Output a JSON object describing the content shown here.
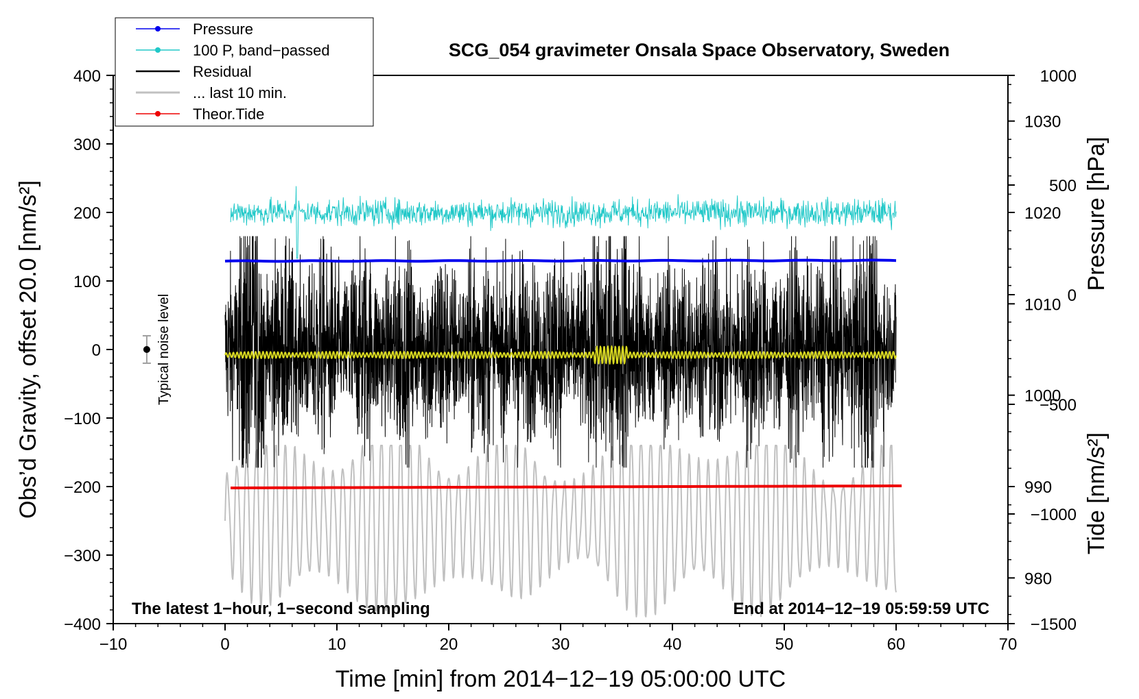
{
  "chart_data": {
    "type": "line",
    "title": "SCG_054 gravimeter Onsala Space Observatory, Sweden",
    "xlabel": "Time [min] from 2014−12−19 05:00:00 UTC",
    "ylabel_left": "Obs’d Gravity, offset 20.0 [nm/s²]",
    "ylabel_right_top": "Pressure [hPa]",
    "ylabel_right_bottom": "Tide [nm/s²]",
    "xlim": [
      -10,
      70
    ],
    "ylim_left": [
      -400,
      400
    ],
    "x_ticks": [
      -10,
      0,
      10,
      20,
      30,
      40,
      50,
      60,
      70
    ],
    "x_tick_labels": [
      "−10",
      "0",
      "10",
      "20",
      "30",
      "40",
      "50",
      "60",
      "70"
    ],
    "y_ticks_left": [
      400,
      300,
      200,
      100,
      0,
      -100,
      -200,
      -300,
      -400
    ],
    "y_tick_labels_left": [
      "400",
      "300",
      "200",
      "100",
      "0",
      "−100",
      "−200",
      "−300",
      "−400"
    ],
    "pressure_axis": {
      "range": [
        975,
        1035
      ],
      "ticks": [
        1030,
        1020,
        1010,
        1000,
        990,
        980
      ],
      "labels": [
        "1030",
        "1020",
        "1010",
        "1000",
        "990",
        "980"
      ]
    },
    "tide_axis": {
      "range": [
        -1500,
        1000
      ],
      "ticks": [
        1000,
        500,
        0,
        -500,
        -1000,
        -1500
      ],
      "labels": [
        "1000",
        "500",
        "0",
        "−500",
        "−1000",
        "−1500"
      ]
    },
    "legend": [
      {
        "label": "Pressure",
        "color": "#0000ee",
        "marker": true
      },
      {
        "label": "100 P, band−passed",
        "color": "#20c8c8",
        "marker": true
      },
      {
        "label": "Residual",
        "color": "#000000",
        "marker": false
      },
      {
        "label": "... last 10 min.",
        "color": "#c0c0c0",
        "marker": false
      },
      {
        "label": "Theor.Tide",
        "color": "#ee0000",
        "marker": true
      }
    ],
    "annotations": {
      "bottom_left": "The latest 1−hour, 1−second sampling",
      "bottom_right": "End at 2014−12−19 05:59:59 UTC",
      "noise_label": "Typical noise level"
    },
    "noise_bar": {
      "x": -7,
      "center": 0,
      "half_range": 20
    },
    "series": [
      {
        "name": "Pressure",
        "axis": "left",
        "color": "#0000ee",
        "x_range": [
          0,
          60
        ],
        "values_start_end": [
          129,
          130
        ]
      },
      {
        "name": "100 P, band−passed",
        "axis": "left",
        "color": "#20c8c8",
        "x_range": [
          0.5,
          60
        ],
        "mean": 200,
        "amplitude": 12
      },
      {
        "name": "Residual",
        "axis": "left",
        "color": "#000000",
        "x_range": [
          0,
          60
        ],
        "mean": 0,
        "envelope_max": 165,
        "envelope_min": -172
      },
      {
        "name": "Residual (smoothed)",
        "axis": "left",
        "color": "#d8d820",
        "x_range": [
          0,
          60
        ],
        "mean": -8
      },
      {
        "name": "... last 10 min.",
        "axis": "left",
        "color": "#c0c0c0",
        "x_range": [
          0,
          60
        ],
        "mean": -250,
        "min": -390,
        "max": -140
      },
      {
        "name": "Theor.Tide",
        "axis": "left",
        "color": "#ee0000",
        "x_range": [
          0.5,
          60.5
        ],
        "values_start_end": [
          -202,
          -199
        ]
      }
    ]
  }
}
